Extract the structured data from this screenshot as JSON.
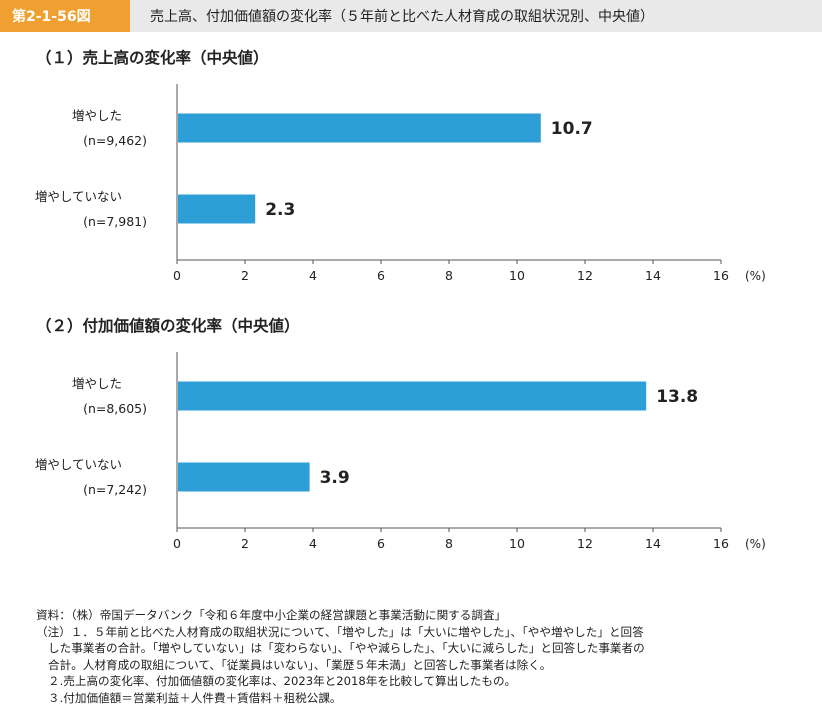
{
  "header": {
    "figure_number": "第2-1-56図",
    "title": "売上高、付加価値額の変化率（５年前と比べた人材育成の取組状況別、中央値）"
  },
  "chart_data": [
    {
      "type": "bar",
      "orientation": "horizontal",
      "title": "（１）売上高の変化率（中央値）",
      "categories": [
        "増やした",
        "増やしていない"
      ],
      "category_notes": [
        "(n=9,462)",
        "(n=7,981)"
      ],
      "values": [
        10.7,
        2.3
      ],
      "value_labels": [
        "10.7",
        "2.3"
      ],
      "xlim": [
        0,
        16
      ],
      "xticks": [
        0,
        2,
        4,
        6,
        8,
        10,
        12,
        14,
        16
      ],
      "xtick_labels": [
        "0",
        "2",
        "4",
        "6",
        "8",
        "10",
        "12",
        "14",
        "16"
      ],
      "unit": "(%)",
      "bar_color": "#2e9fd6",
      "grid": false
    },
    {
      "type": "bar",
      "orientation": "horizontal",
      "title": "（２）付加価値額の変化率（中央値）",
      "categories": [
        "増やした",
        "増やしていない"
      ],
      "category_notes": [
        "(n=8,605)",
        "(n=7,242)"
      ],
      "values": [
        13.8,
        3.9
      ],
      "value_labels": [
        "13.8",
        "3.9"
      ],
      "xlim": [
        0,
        16
      ],
      "xticks": [
        0,
        2,
        4,
        6,
        8,
        10,
        12,
        14,
        16
      ],
      "xtick_labels": [
        "0",
        "2",
        "4",
        "6",
        "8",
        "10",
        "12",
        "14",
        "16"
      ],
      "unit": "(%)",
      "bar_color": "#2e9fd6",
      "grid": false
    }
  ],
  "notes": [
    "資料：（株）帝国データバンク「令和６年度中小企業の経営課題と事業活動に関する調査」",
    "（注）１．５年前と比べた人材育成の取組状況について、「増やした」は「大いに増やした」、「やや増やした」と回答",
    "した事業者の合計。「増やしていない」は「変わらない」、「やや減らした」、「大いに減らした」と回答した事業者の",
    "合計。人材育成の取組について、「従業員はいない」、「業歴５年未満」と回答した事業者は除く。",
    "２.売上高の変化率、付加価値額の変化率は、2023年と2018年を比較して算出したもの。",
    "３.付加価値額＝営業利益＋人件費＋賃借料＋租税公課。"
  ]
}
